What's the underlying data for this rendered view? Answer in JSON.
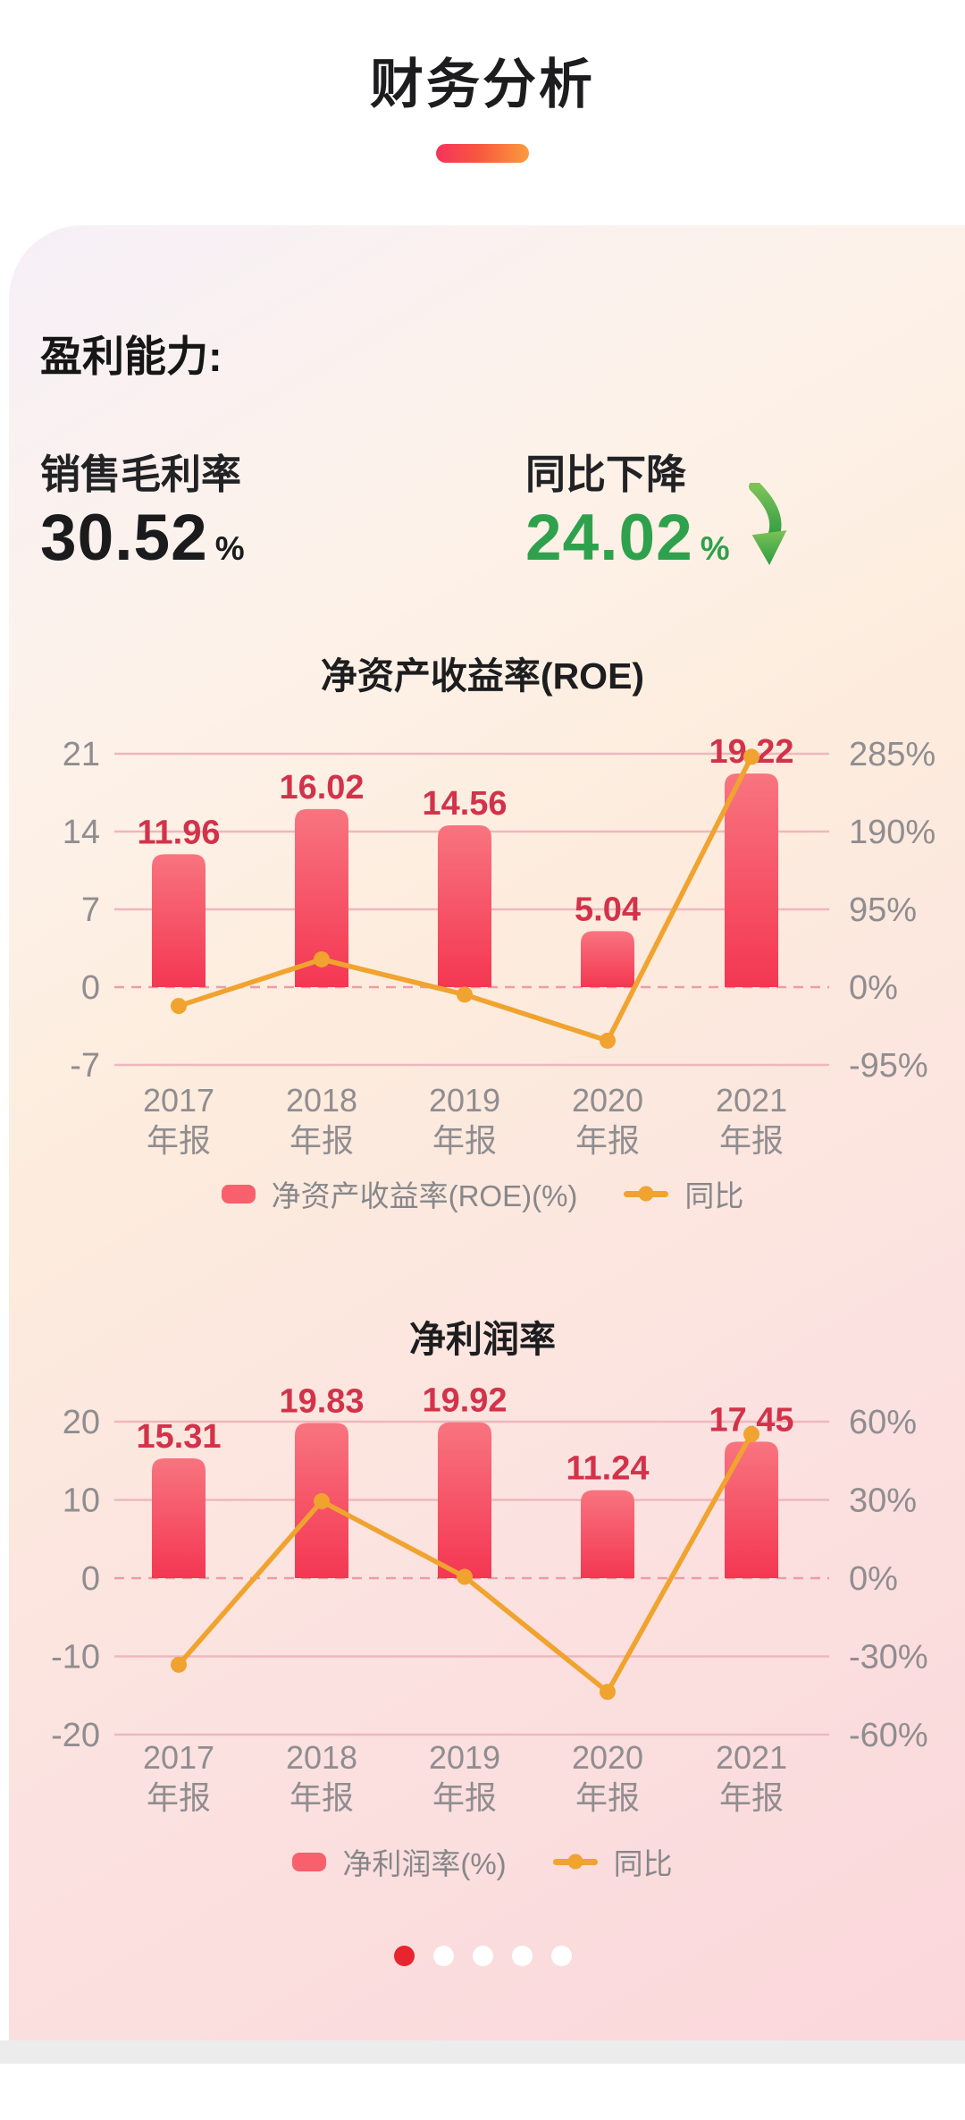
{
  "page": {
    "title": "财务分析"
  },
  "profitability": {
    "heading": "盈利能力:",
    "gross_margin": {
      "label": "销售毛利率",
      "value": "30.52",
      "unit": "%"
    },
    "yoy_change": {
      "label": "同比下降",
      "value": "24.02",
      "unit": "%",
      "direction": "down",
      "trend_icon": "green-curved-arrow-down"
    }
  },
  "chart_data": [
    {
      "type": "bar",
      "title": "净资产收益率(ROE)",
      "categories": [
        "2017",
        "2018",
        "2019",
        "2020",
        "2021"
      ],
      "category_suffix": "年报",
      "series": [
        {
          "name": "净资产收益率(ROE)(%)",
          "type": "bar",
          "axis": "left",
          "values": [
            11.96,
            16.02,
            14.56,
            5.04,
            19.22
          ]
        },
        {
          "name": "同比",
          "type": "line",
          "axis": "right",
          "values": [
            -23,
            33.9,
            -9.1,
            -65.4,
            281.3
          ]
        }
      ],
      "left_axis": {
        "ticks": [
          21,
          14,
          7,
          0,
          -7
        ],
        "range": [
          -7,
          21
        ]
      },
      "right_axis": {
        "ticks": [
          "285%",
          "190%",
          "95%",
          "0%",
          "-95%"
        ],
        "range_pct": [
          -95,
          285
        ]
      },
      "grid": true,
      "legend_position": "bottom"
    },
    {
      "type": "bar",
      "title": "净利润率",
      "categories": [
        "2017",
        "2018",
        "2019",
        "2020",
        "2021"
      ],
      "category_suffix": "年报",
      "series": [
        {
          "name": "净利润率(%)",
          "type": "bar",
          "axis": "left",
          "values": [
            15.31,
            19.83,
            19.92,
            11.24,
            17.45
          ]
        },
        {
          "name": "同比",
          "type": "line",
          "axis": "right",
          "values": [
            -33.2,
            29.5,
            0.5,
            -43.6,
            55.2
          ]
        }
      ],
      "left_axis": {
        "ticks": [
          20,
          10,
          0,
          -10,
          -20
        ],
        "range": [
          -20,
          20
        ]
      },
      "right_axis": {
        "ticks": [
          "60%",
          "30%",
          "0%",
          "-30%",
          "-60%"
        ],
        "range_pct": [
          -60,
          60
        ]
      },
      "grid": true,
      "legend_position": "bottom"
    }
  ],
  "pagination": {
    "dots": 5,
    "active_index": 0
  },
  "colors": {
    "accent_gradient_start": "#f5335c",
    "accent_gradient_end": "#fa9c3e",
    "bar_top": "#f8747f",
    "bar_bottom": "#f43752",
    "line": "#f0a32f",
    "value_label": "#d2334a",
    "axis_label": "#908d90",
    "grid_line": "#eeb7bd",
    "zero_line": "#ee9ba6",
    "metric_green": "#2fa14c",
    "metric_dark": "#1b1b1d",
    "legend_text": "#87878a",
    "active_dot": "#e8242f",
    "inactive_dot": "#ffffff"
  }
}
